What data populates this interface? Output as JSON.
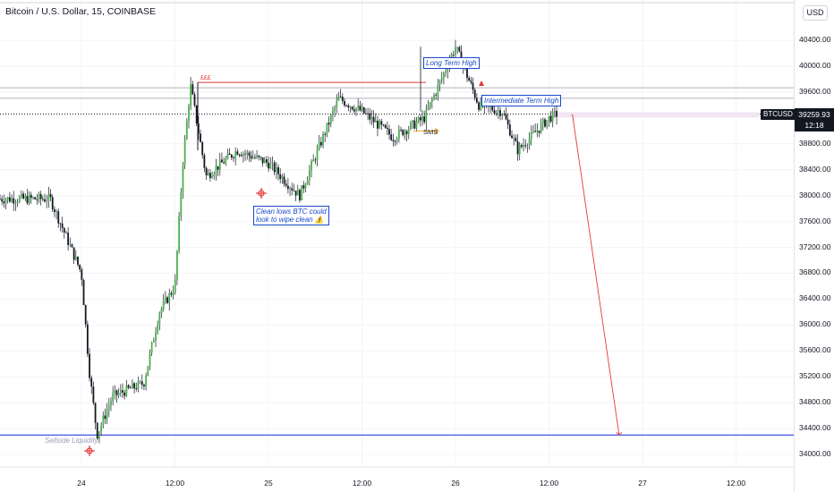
{
  "header": {
    "title": "Bitcoin / U.S. Dollar, 15, COINBASE",
    "currency": "USD"
  },
  "price_axis": {
    "labels": [
      "40400.00",
      "40000.00",
      "39600.00",
      "38800.00",
      "38400.00",
      "38000.00",
      "37600.00",
      "37200.00",
      "36800.00",
      "36400.00",
      "36000.00",
      "35600.00",
      "35200.00",
      "34800.00",
      "34400.00",
      "34000.00"
    ]
  },
  "time_axis": {
    "labels": [
      "24",
      "12:00",
      "25",
      "12:00",
      "26",
      "12:00",
      "27",
      "12:00"
    ]
  },
  "last_price": {
    "symbol": "BTCUSD",
    "value": "39259.93",
    "countdown": "12:18"
  },
  "annotations": {
    "long_term_high": "Long Term High",
    "intermediate_term_high": "Intermediate Term High",
    "clean_lows": "Clean lows BTC could\nlook to wipe clean ⚠️",
    "sellside": "Sellside Liquidity",
    "equal_highs": "£££",
    "sms": "SMS"
  },
  "colors": {
    "up_candle": "#4caf50",
    "down_candle": "#131722",
    "liquidity_line": "#2f3ee0",
    "projection": "#e53935",
    "annotation_blue": "#1848cc"
  },
  "chart_data": {
    "type": "candlestick",
    "symbol": "BTCUSD",
    "interval": "15",
    "ylim": [
      33800,
      40800
    ],
    "last_price": 39259.93,
    "key_levels": {
      "equal_highs": 39750,
      "long_term_high": 40300,
      "intermediate_term_high": 39400,
      "sellside_liquidity": 34300
    },
    "trajectory": [
      {
        "t": "Jan 23 20:00",
        "p": 37950
      },
      {
        "t": "Jan 24 00:00",
        "p": 36800
      },
      {
        "t": "Jan 24 01:00",
        "p": 35300
      },
      {
        "t": "Jan 24 02:00",
        "p": 34300
      },
      {
        "t": "Jan 24 04:00",
        "p": 34900
      },
      {
        "t": "Jan 24 08:00",
        "p": 35100
      },
      {
        "t": "Jan 24 10:00",
        "p": 36200
      },
      {
        "t": "Jan 24 12:00",
        "p": 36600
      },
      {
        "t": "Jan 24 13:00",
        "p": 38500
      },
      {
        "t": "Jan 24 14:00",
        "p": 39700
      },
      {
        "t": "Jan 24 16:00",
        "p": 38300
      },
      {
        "t": "Jan 24 20:00",
        "p": 38700
      },
      {
        "t": "Jan 25 00:00",
        "p": 38500
      },
      {
        "t": "Jan 25 04:00",
        "p": 38000
      },
      {
        "t": "Jan 25 09:00",
        "p": 39500
      },
      {
        "t": "Jan 25 12:00",
        "p": 39300
      },
      {
        "t": "Jan 25 16:00",
        "p": 38900
      },
      {
        "t": "Jan 25 20:00",
        "p": 39200
      },
      {
        "t": "Jan 26 00:00",
        "p": 40300
      },
      {
        "t": "Jan 26 03:00",
        "p": 39400
      },
      {
        "t": "Jan 26 06:00",
        "p": 39300
      },
      {
        "t": "Jan 26 08:00",
        "p": 38700
      },
      {
        "t": "Jan 26 12:00",
        "p": 39200
      },
      {
        "t": "Jan 26 13:00",
        "p": 39260
      }
    ],
    "projection": {
      "from": "Jan 26 15:00",
      "to": "Jan 26 21:00",
      "target": 34300
    }
  }
}
